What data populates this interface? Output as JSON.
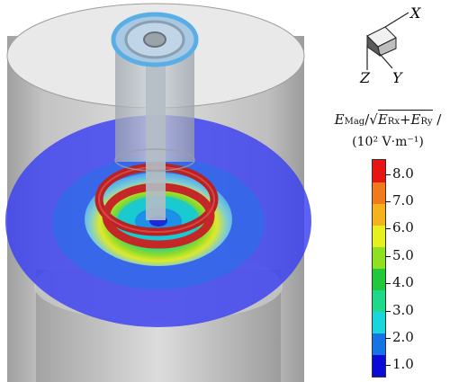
{
  "triad": {
    "x_label": "X",
    "y_label": "Y",
    "z_label": "Z"
  },
  "legend": {
    "title_symbol": "E",
    "title_sub": "Mag",
    "title_mid": "/√",
    "title_e1": "E",
    "title_e1_sub": "Rx",
    "title_plus": "+",
    "title_e2": "E",
    "title_e2_sub": "Ry",
    "title_end": " /",
    "units": "(10² V·m⁻¹)"
  },
  "colorbar": {
    "colors": [
      "#0b0bd6",
      "#1673e6",
      "#19d6dd",
      "#1ed98a",
      "#21c93a",
      "#8fe022",
      "#e6f021",
      "#f4b21d",
      "#f27a1a",
      "#e81515"
    ],
    "ticks": [
      {
        "value": 1.0,
        "label": "1.0"
      },
      {
        "value": 2.0,
        "label": "2.0"
      },
      {
        "value": 3.0,
        "label": "3.0"
      },
      {
        "value": 4.0,
        "label": "4.0"
      },
      {
        "value": 5.0,
        "label": "5.0"
      },
      {
        "value": 6.0,
        "label": "6.0"
      },
      {
        "value": 7.0,
        "label": "7.0"
      },
      {
        "value": 8.0,
        "label": "8.0"
      }
    ],
    "min": 0.55,
    "max": 8.55
  }
}
